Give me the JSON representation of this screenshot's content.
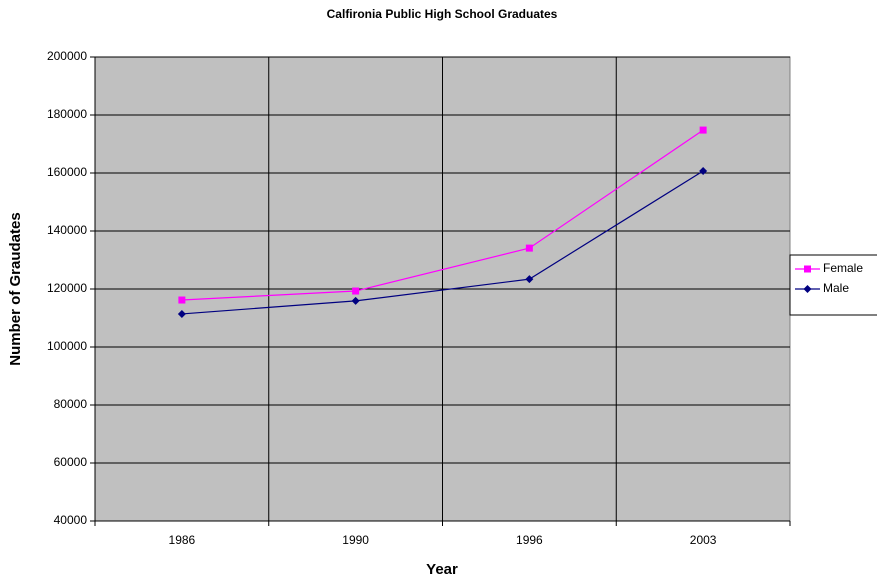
{
  "chart_data": {
    "type": "line",
    "title": "Calfironia Public High School Graduates",
    "x_label": "Year",
    "y_label": "Number of Graudates",
    "categories": [
      "1986",
      "1990",
      "1996",
      "2003"
    ],
    "series": [
      {
        "name": "Female",
        "color": "#ff00ff",
        "marker": "square",
        "values": [
          116200,
          119300,
          134100,
          174800
        ]
      },
      {
        "name": "Male",
        "color": "#000080",
        "marker": "diamond",
        "values": [
          111400,
          115900,
          123400,
          160700
        ]
      }
    ],
    "ylim": [
      40000,
      200000
    ],
    "yticks": [
      40000,
      60000,
      80000,
      100000,
      120000,
      140000,
      160000,
      180000,
      200000
    ],
    "grid": true,
    "legend": "right"
  }
}
